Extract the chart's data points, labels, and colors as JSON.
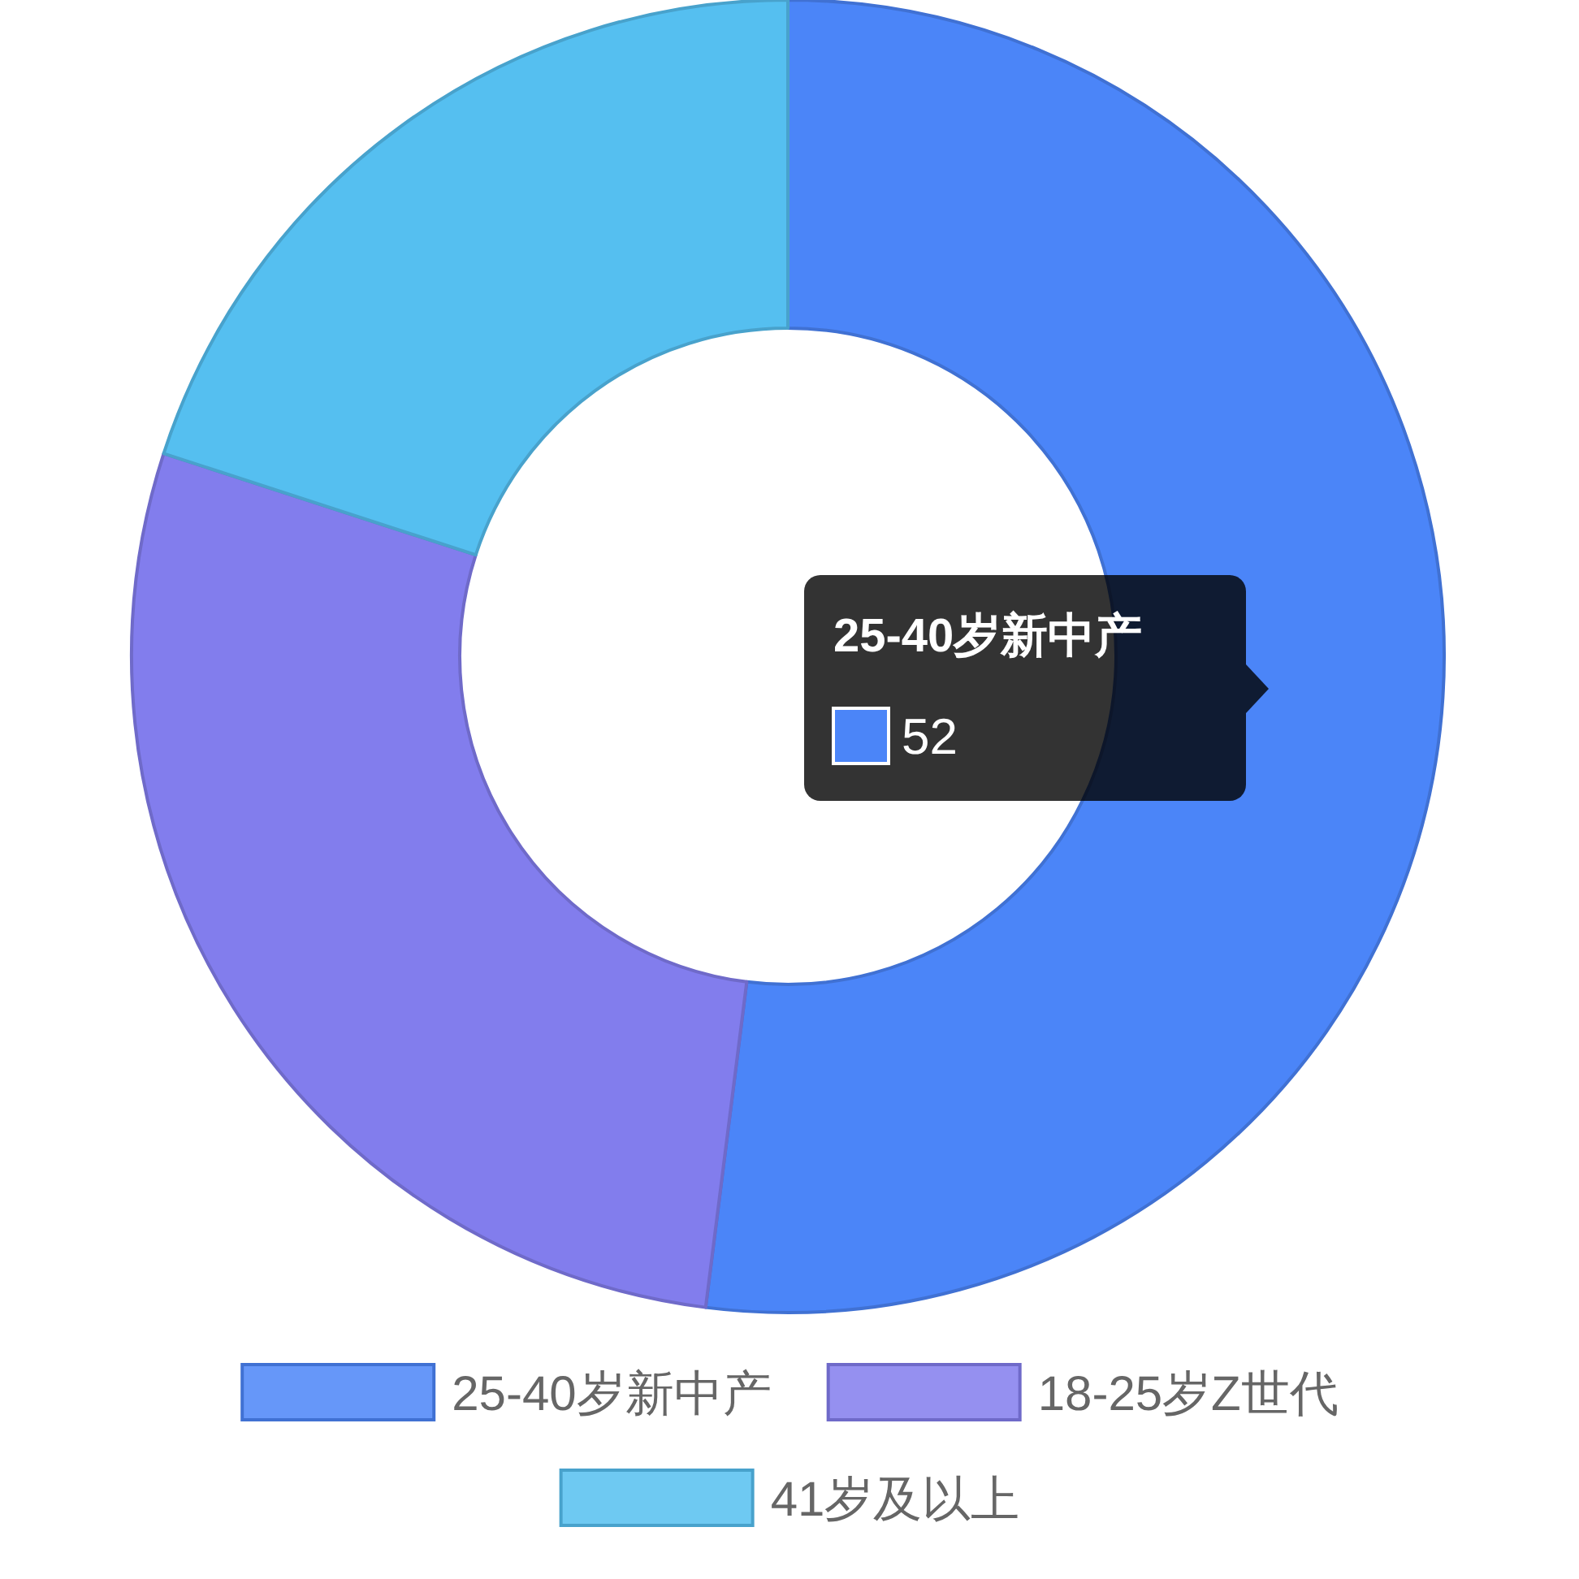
{
  "chart_data": {
    "type": "donut",
    "categories": [
      "25-40岁新中产",
      "18-25岁Z世代",
      "41岁及以上"
    ],
    "values": [
      52,
      28,
      20
    ],
    "colors": [
      "#4b85f8",
      "#827ded",
      "#55bff0"
    ],
    "value_labels": [
      "52",
      null,
      null
    ],
    "legend": "bottom"
  }
}
